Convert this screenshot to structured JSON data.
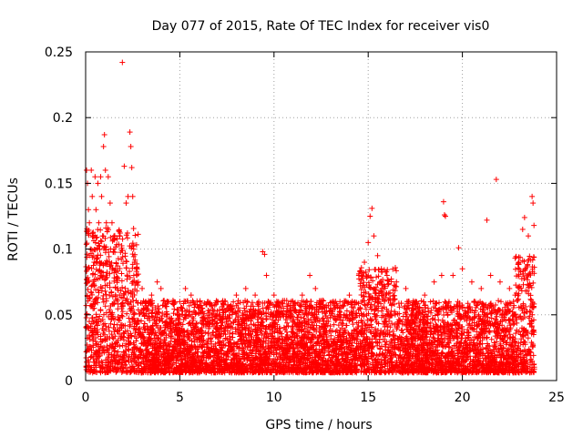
{
  "chart_data": {
    "type": "scatter",
    "title": "Day 077 of 2015, Rate Of TEC Index for receiver vis0",
    "xlabel": "GPS time / hours",
    "ylabel": "ROTI / TECUs",
    "xlim": [
      0,
      25
    ],
    "ylim": [
      0,
      0.25
    ],
    "xticks": [
      0,
      5,
      10,
      15,
      20,
      25
    ],
    "yticks": [
      0,
      0.05,
      0.1,
      0.15,
      0.2,
      0.25
    ],
    "x_tick_labels": [
      "0",
      "5",
      "10",
      "15",
      "20",
      "25"
    ],
    "y_tick_labels": [
      "0",
      "0.05",
      "0.1",
      "0.15",
      "0.2",
      "0.25"
    ],
    "grid": true,
    "marker": "+",
    "series_color": "#ff0000",
    "series": [
      {
        "name": "ROTI",
        "points": [
          [
            0.05,
            0.16
          ],
          [
            0.1,
            0.15
          ],
          [
            0.15,
            0.13
          ],
          [
            0.2,
            0.12
          ],
          [
            0.25,
            0.1
          ],
          [
            0.3,
            0.16
          ],
          [
            0.35,
            0.14
          ],
          [
            0.4,
            0.11
          ],
          [
            0.45,
            0.09
          ],
          [
            0.5,
            0.155
          ],
          [
            0.55,
            0.13
          ],
          [
            0.6,
            0.1
          ],
          [
            0.65,
            0.15
          ],
          [
            0.7,
            0.12
          ],
          [
            0.75,
            0.09
          ],
          [
            0.8,
            0.155
          ],
          [
            0.85,
            0.14
          ],
          [
            0.9,
            0.11
          ],
          [
            0.95,
            0.178
          ],
          [
            1.0,
            0.187
          ],
          [
            1.05,
            0.16
          ],
          [
            1.1,
            0.12
          ],
          [
            1.15,
            0.09
          ],
          [
            1.2,
            0.155
          ],
          [
            1.3,
            0.135
          ],
          [
            1.4,
            0.12
          ],
          [
            1.5,
            0.1
          ],
          [
            1.6,
            0.085
          ],
          [
            1.7,
            0.07
          ],
          [
            1.8,
            0.065
          ],
          [
            1.95,
            0.242
          ],
          [
            2.05,
            0.163
          ],
          [
            2.15,
            0.135
          ],
          [
            2.25,
            0.14
          ],
          [
            2.35,
            0.189
          ],
          [
            2.4,
            0.178
          ],
          [
            2.45,
            0.162
          ],
          [
            2.5,
            0.14
          ],
          [
            2.55,
            0.1
          ],
          [
            2.6,
            0.09
          ],
          [
            2.7,
            0.085
          ],
          [
            2.8,
            0.075
          ],
          [
            3.0,
            0.07
          ],
          [
            3.2,
            0.06
          ],
          [
            3.5,
            0.065
          ],
          [
            3.8,
            0.075
          ],
          [
            4.0,
            0.07
          ],
          [
            4.3,
            0.05
          ],
          [
            4.6,
            0.045
          ],
          [
            5.0,
            0.06
          ],
          [
            5.3,
            0.07
          ],
          [
            5.6,
            0.065
          ],
          [
            6.0,
            0.055
          ],
          [
            6.5,
            0.06
          ],
          [
            7.0,
            0.06
          ],
          [
            7.5,
            0.055
          ],
          [
            8.0,
            0.065
          ],
          [
            8.5,
            0.07
          ],
          [
            9.0,
            0.065
          ],
          [
            9.4,
            0.098
          ],
          [
            9.5,
            0.096
          ],
          [
            9.6,
            0.08
          ],
          [
            10.0,
            0.065
          ],
          [
            10.5,
            0.055
          ],
          [
            11.0,
            0.06
          ],
          [
            11.5,
            0.065
          ],
          [
            11.9,
            0.08
          ],
          [
            12.2,
            0.07
          ],
          [
            12.5,
            0.06
          ],
          [
            13.0,
            0.055
          ],
          [
            13.5,
            0.06
          ],
          [
            14.0,
            0.065
          ],
          [
            14.5,
            0.08
          ],
          [
            14.8,
            0.09
          ],
          [
            15.0,
            0.105
          ],
          [
            15.1,
            0.125
          ],
          [
            15.2,
            0.131
          ],
          [
            15.3,
            0.11
          ],
          [
            15.5,
            0.095
          ],
          [
            15.7,
            0.085
          ],
          [
            16.0,
            0.08
          ],
          [
            16.5,
            0.075
          ],
          [
            17.0,
            0.07
          ],
          [
            17.5,
            0.06
          ],
          [
            18.0,
            0.065
          ],
          [
            18.5,
            0.075
          ],
          [
            18.9,
            0.08
          ],
          [
            19.0,
            0.136
          ],
          [
            19.05,
            0.126
          ],
          [
            19.1,
            0.125
          ],
          [
            19.5,
            0.08
          ],
          [
            19.8,
            0.101
          ],
          [
            20.0,
            0.085
          ],
          [
            20.5,
            0.075
          ],
          [
            21.0,
            0.07
          ],
          [
            21.3,
            0.122
          ],
          [
            21.5,
            0.08
          ],
          [
            21.8,
            0.153
          ],
          [
            22.0,
            0.075
          ],
          [
            22.5,
            0.07
          ],
          [
            22.8,
            0.065
          ],
          [
            23.0,
            0.09
          ],
          [
            23.2,
            0.115
          ],
          [
            23.3,
            0.124
          ],
          [
            23.5,
            0.11
          ],
          [
            23.7,
            0.14
          ],
          [
            23.75,
            0.135
          ],
          [
            23.8,
            0.118
          ]
        ]
      }
    ]
  }
}
